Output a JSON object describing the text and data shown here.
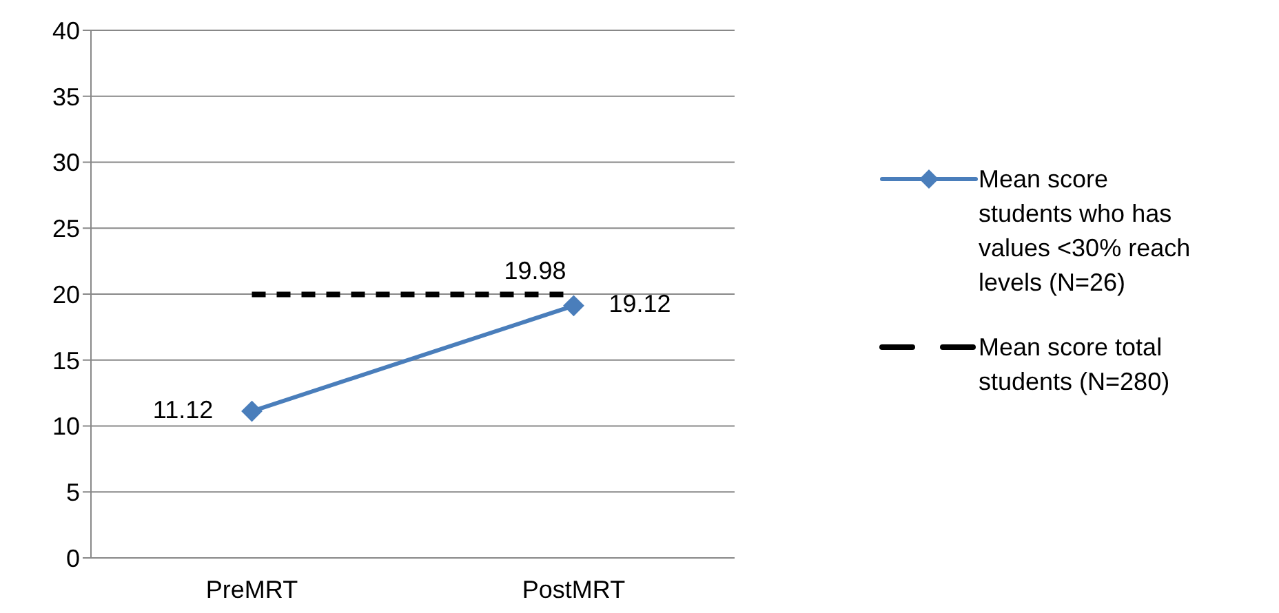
{
  "chart_data": {
    "type": "line",
    "categories": [
      "PreMRT",
      "PostMRT"
    ],
    "series": [
      {
        "name": "Mean score students who has values <30% reach levels (N=26)",
        "color": "#4a7ebb",
        "values": [
          11.12,
          19.12
        ],
        "marker": "diamond",
        "line_style": "solid",
        "value_labels": [
          "11.12",
          "19.12"
        ]
      },
      {
        "name": "Mean score total students (N=280)",
        "color": "#000000",
        "values": [
          19.98,
          19.98
        ],
        "marker": "none",
        "line_style": "dashed",
        "value_labels": [
          null,
          "19.98"
        ]
      }
    ],
    "ylim": [
      0,
      40
    ],
    "yticks": [
      0,
      5,
      10,
      15,
      20,
      25,
      30,
      35,
      40
    ],
    "grid": "y",
    "legend": "right"
  }
}
